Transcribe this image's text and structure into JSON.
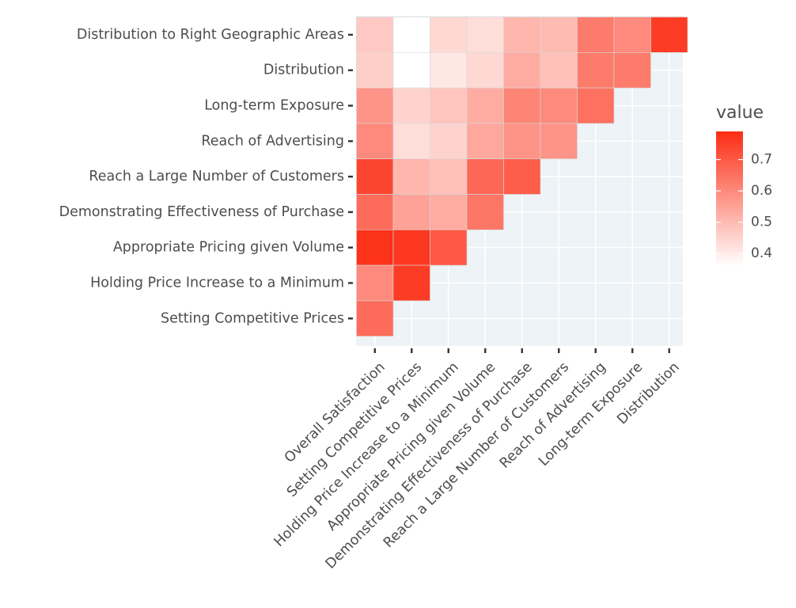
{
  "chart_data": {
    "type": "heatmap",
    "title": "",
    "xlabel": "",
    "ylabel": "",
    "x_categories": [
      "Overall Satisfaction",
      "Setting Competitive Prices",
      "Holding Price Increase to a Minimum",
      "Appropriate Pricing given Volume",
      "Demonstrating Effectiveness of Purchase",
      "Reach a Large Number of Customers",
      "Reach of Advertising",
      "Long-term Exposure",
      "Distribution"
    ],
    "y_categories": [
      "Distribution to Right Geographic Areas",
      "Distribution",
      "Long-term Exposure",
      "Reach of Advertising",
      "Reach a Large Number of Customers",
      "Demonstrating Effectiveness of Purchase",
      "Appropriate Pricing given Volume",
      "Holding Price Increase to a Minimum",
      "Setting Competitive Prices"
    ],
    "values": [
      [
        0.47,
        0.36,
        0.44,
        0.43,
        0.51,
        0.5,
        0.63,
        0.6,
        0.76
      ],
      [
        0.46,
        0.36,
        0.41,
        0.44,
        0.53,
        0.49,
        0.63,
        0.63,
        null
      ],
      [
        0.58,
        0.45,
        0.48,
        0.53,
        0.61,
        0.6,
        0.65,
        null,
        null
      ],
      [
        0.6,
        0.43,
        0.45,
        0.54,
        0.58,
        0.58,
        null,
        null,
        null
      ],
      [
        0.74,
        0.51,
        0.49,
        0.67,
        0.69,
        null,
        null,
        null,
        null
      ],
      [
        0.66,
        0.55,
        0.53,
        0.64,
        null,
        null,
        null,
        null,
        null
      ],
      [
        0.78,
        0.77,
        0.7,
        null,
        null,
        null,
        null,
        null,
        null
      ],
      [
        0.6,
        0.76,
        null,
        null,
        null,
        null,
        null,
        null,
        null
      ],
      [
        0.66,
        null,
        null,
        null,
        null,
        null,
        null,
        null,
        null
      ]
    ],
    "legend": {
      "title": "value",
      "ticks": [
        "0.7",
        "0.6",
        "0.5",
        "0.4"
      ],
      "tick_values": [
        0.7,
        0.6,
        0.5,
        0.4
      ],
      "min": 0.36,
      "max": 0.79,
      "low_color": "#ffffff",
      "high_color": "#fc2d14",
      "placement": "right"
    },
    "panel_color": "#edf3f6",
    "grid": true
  }
}
